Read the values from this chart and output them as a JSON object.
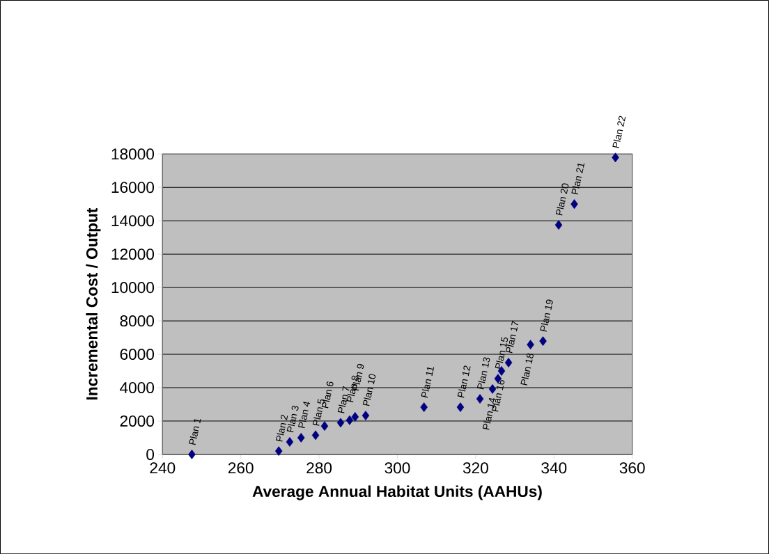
{
  "chart_data": {
    "type": "scatter",
    "xlabel": "Average Annual Habitat Units (AAHUs)",
    "ylabel": "Incremental Cost / Output",
    "series": [
      {
        "color": "#000080",
        "x": [
          247.5,
          269.7,
          272.5,
          275.4,
          279.1,
          281.4,
          285.5,
          287.8,
          289.2,
          291.9,
          306.8,
          316.1,
          321.1,
          324.3,
          325.7,
          326.6,
          328.4,
          334.0,
          337.2,
          341.2,
          345.2,
          355.7
        ],
        "values": [
          0,
          200,
          750,
          1000,
          1150,
          1700,
          1900,
          2050,
          2250,
          2330,
          2830,
          2830,
          3330,
          3920,
          4540,
          5000,
          5500,
          6580,
          6790,
          13750,
          15000,
          17790
        ]
      }
    ],
    "annotations": [
      {
        "text": "Plan 1",
        "x": 247.5,
        "y": 0
      },
      {
        "text": "Plan 2",
        "x": 269.7,
        "y": 200
      },
      {
        "text": "Plan 3",
        "x": 272.5,
        "y": 750
      },
      {
        "text": "Plan 4",
        "x": 275.4,
        "y": 1000
      },
      {
        "text": "Plan 5",
        "x": 279.1,
        "y": 1150
      },
      {
        "text": "Plan 6",
        "x": 281.4,
        "y": 1700
      },
      {
        "text": "Plan 7",
        "x": 285.5,
        "y": 1900
      },
      {
        "text": "Plan 8",
        "x": 287.8,
        "y": 2050
      },
      {
        "text": "Plan 9",
        "x": 289.2,
        "y": 2250
      },
      {
        "text": "Plan 10",
        "x": 291.9,
        "y": 2330
      },
      {
        "text": "Plan 11",
        "x": 306.8,
        "y": 2830
      },
      {
        "text": "Plan 12",
        "x": 316.1,
        "y": 2830
      },
      {
        "text": "Plan 13",
        "x": 321.1,
        "y": 3330
      },
      {
        "text": "Plan 14",
        "x": 324.3,
        "y": 3920
      },
      {
        "text": "Plan 15",
        "x": 325.7,
        "y": 4540
      },
      {
        "text": "Plan 16",
        "x": 326.6,
        "y": 5000
      },
      {
        "text": "Plan 17",
        "x": 328.4,
        "y": 5500
      },
      {
        "text": "Plan 18",
        "x": 334.0,
        "y": 6580
      },
      {
        "text": "Plan 19",
        "x": 337.2,
        "y": 6790
      },
      {
        "text": "Plan 20",
        "x": 341.2,
        "y": 13750
      },
      {
        "text": "Plan 21",
        "x": 345.2,
        "y": 15000
      },
      {
        "text": "Plan 22",
        "x": 355.7,
        "y": 17790
      }
    ],
    "xlim": [
      240,
      360
    ],
    "xticks": [
      240,
      260,
      280,
      300,
      320,
      340,
      360
    ],
    "ylim": [
      0,
      18000
    ],
    "yticks": [
      0,
      2000,
      4000,
      6000,
      8000,
      10000,
      12000,
      14000,
      16000,
      18000
    ],
    "grid": "y",
    "marker": "diamond"
  }
}
